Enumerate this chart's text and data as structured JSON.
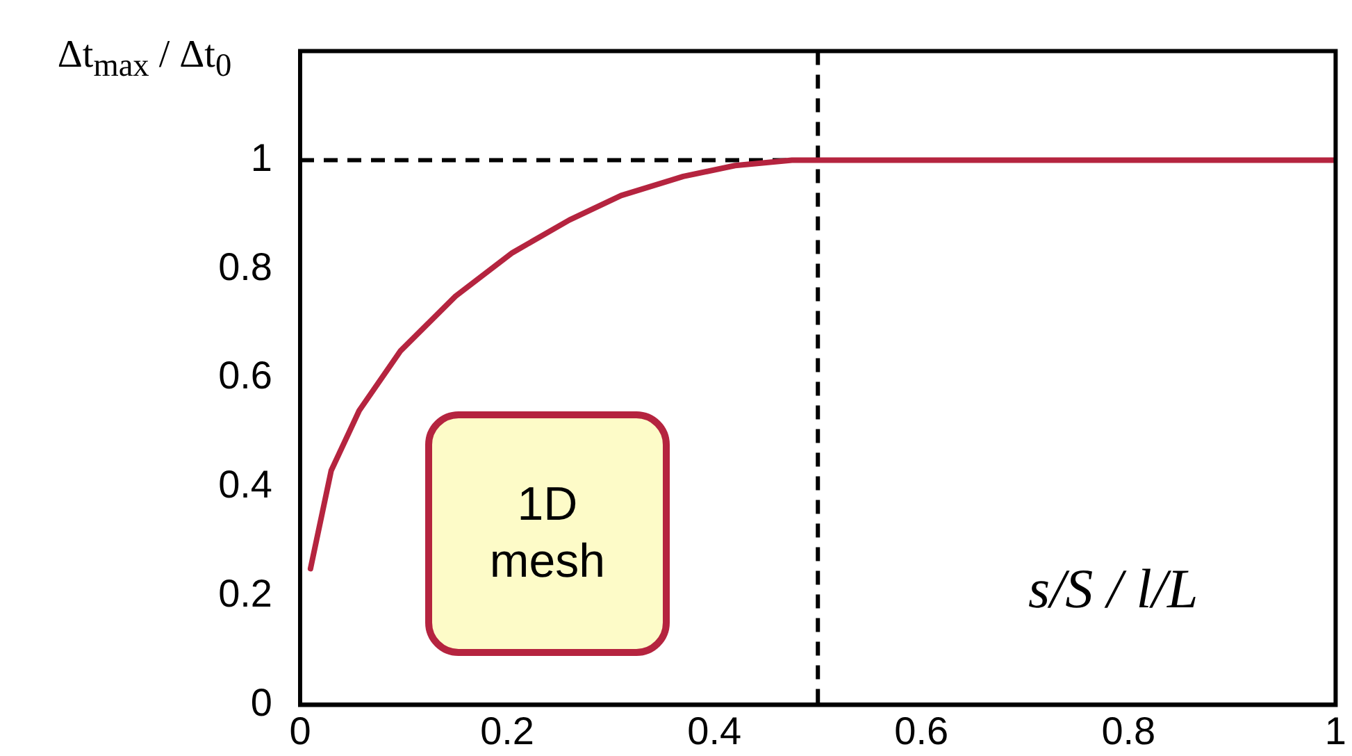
{
  "chart_data": {
    "type": "line",
    "ylabel": "Δt$_{max}$ / Δt$_{0}$",
    "xlabel": "s/S / l/L",
    "x": [
      0.01,
      0.03,
      0.057,
      0.097,
      0.15,
      0.205,
      0.26,
      0.31,
      0.37,
      0.42,
      0.475,
      0.5,
      0.6,
      0.7,
      0.8,
      0.9,
      1
    ],
    "series": [
      {
        "color": "#b5243f",
        "values": [
          0.25,
          0.43,
          0.54,
          0.65,
          0.75,
          0.83,
          0.89,
          0.935,
          0.97,
          0.99,
          1,
          1,
          1,
          1,
          1,
          1,
          1
        ]
      }
    ],
    "xlim": [
      0,
      1
    ],
    "xticks": [
      0,
      0.2,
      0.4,
      0.6,
      0.8,
      1
    ],
    "ylim": [
      0,
      1.2
    ],
    "yticks": [
      0,
      0.2,
      0.4,
      0.6,
      0.8,
      1
    ],
    "grid": false,
    "legend": false,
    "marker": "none",
    "line_style": "solid",
    "ref_lines": [
      {
        "axis": "y",
        "value": 1,
        "color": "#000000",
        "line_style": "dashed"
      },
      {
        "axis": "x",
        "value": 0.5,
        "color": "#000000",
        "line_style": "dashed"
      }
    ],
    "annotations": [
      "1D mesh"
    ]
  }
}
